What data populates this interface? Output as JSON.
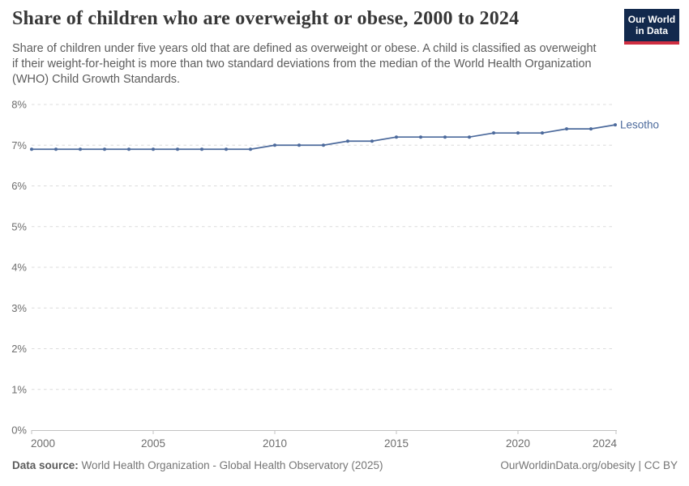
{
  "header": {
    "title": "Share of children who are overweight or obese, 2000 to 2024",
    "subtitle": "Share of children under five years old that are defined as overweight or obese. A child is classified as overweight if their weight-for-height is more than two standard deviations from the median of the World Health Organization (WHO) Child Growth Standards."
  },
  "logo": {
    "line1": "Our World",
    "line2": "in Data",
    "bg_color": "#12294d",
    "accent_color": "#cf2e41"
  },
  "chart_data": {
    "type": "line",
    "title": "Share of children who are overweight or obese, 2000 to 2024",
    "xlabel": "",
    "ylabel": "",
    "x": [
      2000,
      2001,
      2002,
      2003,
      2004,
      2005,
      2006,
      2007,
      2008,
      2009,
      2010,
      2011,
      2012,
      2013,
      2014,
      2015,
      2016,
      2017,
      2018,
      2019,
      2020,
      2021,
      2022,
      2023,
      2024
    ],
    "series": [
      {
        "name": "Lesotho",
        "color": "#4c6a9c",
        "values": [
          6.9,
          6.9,
          6.9,
          6.9,
          6.9,
          6.9,
          6.9,
          6.9,
          6.9,
          6.9,
          7.0,
          7.0,
          7.0,
          7.1,
          7.1,
          7.2,
          7.2,
          7.2,
          7.2,
          7.3,
          7.3,
          7.3,
          7.4,
          7.4,
          7.5
        ]
      }
    ],
    "ylim": [
      0,
      8
    ],
    "ytick_values": [
      0,
      1,
      2,
      3,
      4,
      5,
      6,
      7,
      8
    ],
    "ytick_labels": [
      "0%",
      "1%",
      "2%",
      "3%",
      "4%",
      "5%",
      "6%",
      "7%",
      "8%"
    ],
    "xticks": [
      2000,
      2005,
      2010,
      2015,
      2020,
      2024
    ],
    "xtick_labels": [
      "2000",
      "2005",
      "2010",
      "2015",
      "2020",
      "2024"
    ],
    "grid": "horizontal-dashed",
    "legend": "end-of-line-label",
    "grid_color": "#dcdcdc",
    "axis_color": "#c2c2c2",
    "tick_label_color": "#6e6e6e"
  },
  "footer": {
    "datasource_label": "Data source:",
    "datasource_text": " World Health Organization - Global Health Observatory (2025)",
    "rights": "OurWorldinData.org/obesity | CC BY"
  }
}
